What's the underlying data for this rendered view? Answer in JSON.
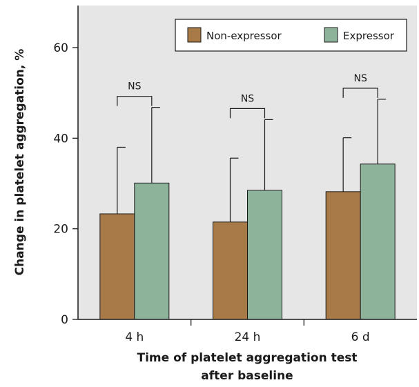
{
  "chart_data": {
    "type": "bar",
    "categories": [
      "4 h",
      "24 h",
      "6 d"
    ],
    "series": [
      {
        "name": "Non-expressor",
        "values": [
          23.3,
          21.5,
          28.2
        ],
        "error_upper": [
          38.0,
          35.6,
          40.1
        ],
        "color": "#a87a47"
      },
      {
        "name": "Expressor",
        "values": [
          30.1,
          28.5,
          34.3
        ],
        "error_upper": [
          46.8,
          44.1,
          48.6
        ],
        "color": "#8db39a"
      }
    ],
    "annotations": [
      {
        "category": "4 h",
        "text": "NS"
      },
      {
        "category": "24 h",
        "text": "NS"
      },
      {
        "category": "6 d",
        "text": "NS"
      }
    ],
    "xlabel_lines": [
      "Time of platelet aggregation test",
      "after baseline"
    ],
    "ylabel": "Change in platelet  aggregation, %",
    "ylim": [
      0,
      60
    ],
    "yticks": [
      "0",
      "20",
      "40",
      "60"
    ],
    "plot_background": "#e6e6e6",
    "legend_position": "top-right",
    "grid": false
  }
}
